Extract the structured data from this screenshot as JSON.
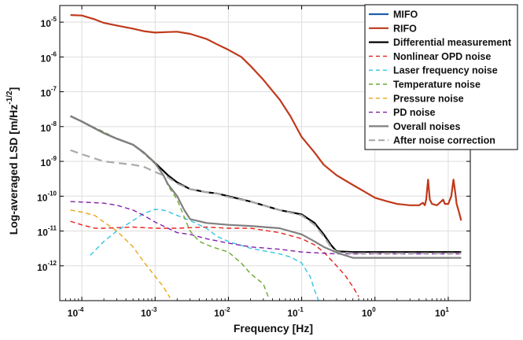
{
  "chart_data": {
    "type": "line",
    "title": "",
    "xlabel": "Frequency  [Hz]",
    "ylabel": "Log-averaged LSD [m/Hz^-1/2]",
    "ylabel_parts": {
      "main": "Log-averaged LSD [m/Hz",
      "exp": "-1/2",
      "close": "]"
    },
    "xscale": "log",
    "yscale": "log",
    "xlim": [
      5e-05,
      20
    ],
    "ylim": [
      1e-13,
      3e-05
    ],
    "grid": true,
    "legend_position": "top-right",
    "x_ticks": [
      {
        "value": 0.0001,
        "base": "10",
        "exp": "-4"
      },
      {
        "value": 0.001,
        "base": "10",
        "exp": "-3"
      },
      {
        "value": 0.01,
        "base": "10",
        "exp": "-2"
      },
      {
        "value": 0.1,
        "base": "10",
        "exp": "-1"
      },
      {
        "value": 1,
        "base": "10",
        "exp": "0"
      },
      {
        "value": 10,
        "base": "10",
        "exp": "1"
      }
    ],
    "y_ticks": [
      {
        "value": 1e-12,
        "base": "10",
        "exp": "-12"
      },
      {
        "value": 1e-11,
        "base": "10",
        "exp": "-11"
      },
      {
        "value": 1e-10,
        "base": "10",
        "exp": "-10"
      },
      {
        "value": 1e-09,
        "base": "10",
        "exp": "-9"
      },
      {
        "value": 1e-08,
        "base": "10",
        "exp": "-8"
      },
      {
        "value": 1e-07,
        "base": "10",
        "exp": "-7"
      },
      {
        "value": 1e-06,
        "base": "10",
        "exp": "-6"
      },
      {
        "value": 1e-05,
        "base": "10",
        "exp": "-5"
      }
    ],
    "series": [
      {
        "name": "MIFO",
        "color": "#1f5fa8",
        "dash": "solid",
        "width": 2.2,
        "points": []
      },
      {
        "name": "RIFO",
        "color": "#c0391b",
        "dash": "solid",
        "width": 2.2,
        "points": [
          [
            7e-05,
            1.6e-05
          ],
          [
            0.0001,
            1.55e-05
          ],
          [
            0.00015,
            1.2e-05
          ],
          [
            0.0002,
            9.5e-06
          ],
          [
            0.0003,
            8e-06
          ],
          [
            0.0005,
            6.5e-06
          ],
          [
            0.0007,
            5.5e-06
          ],
          [
            0.001,
            5e-06
          ],
          [
            0.0015,
            5.2e-06
          ],
          [
            0.002,
            5.3e-06
          ],
          [
            0.003,
            4.6e-06
          ],
          [
            0.005,
            3.3e-06
          ],
          [
            0.007,
            2.3e-06
          ],
          [
            0.01,
            1.6e-06
          ],
          [
            0.015,
            1e-06
          ],
          [
            0.02,
            5.5e-07
          ],
          [
            0.03,
            2.2e-07
          ],
          [
            0.05,
            6e-08
          ],
          [
            0.07,
            2e-08
          ],
          [
            0.1,
            5e-09
          ],
          [
            0.15,
            1.8e-09
          ],
          [
            0.2,
            8e-10
          ],
          [
            0.3,
            4e-10
          ],
          [
            0.5,
            2.1e-10
          ],
          [
            0.7,
            1.4e-10
          ],
          [
            1,
            9e-11
          ],
          [
            1.5,
            7e-11
          ],
          [
            2,
            6e-11
          ],
          [
            3,
            5.5e-11
          ],
          [
            4,
            5.5e-11
          ],
          [
            4.5,
            6.5e-11
          ],
          [
            4.8,
            5.5e-11
          ],
          [
            5,
            8e-11
          ],
          [
            5.3,
            3e-10
          ],
          [
            5.6,
            8e-11
          ],
          [
            6,
            6e-11
          ],
          [
            7,
            5.5e-11
          ],
          [
            8,
            7e-11
          ],
          [
            8.5,
            8e-11
          ],
          [
            9,
            6e-11
          ],
          [
            10,
            6e-11
          ],
          [
            11,
            1e-10
          ],
          [
            11.8,
            3e-10
          ],
          [
            12.5,
            1.2e-10
          ],
          [
            13,
            6e-11
          ],
          [
            14,
            3.5e-11
          ],
          [
            15,
            2e-11
          ]
        ]
      },
      {
        "name": "Differential measurement",
        "color": "#000000",
        "dash": "solid",
        "width": 2.2,
        "points": [
          [
            7e-05,
            2e-08
          ],
          [
            0.0001,
            1.4e-08
          ],
          [
            0.0002,
            6.5e-09
          ],
          [
            0.0003,
            4.5e-09
          ],
          [
            0.0005,
            3e-09
          ],
          [
            0.0007,
            1.8e-09
          ],
          [
            0.001,
            9e-10
          ],
          [
            0.0015,
            4e-10
          ],
          [
            0.002,
            2.5e-10
          ],
          [
            0.003,
            1.6e-10
          ],
          [
            0.005,
            1.3e-10
          ],
          [
            0.007,
            1.2e-10
          ],
          [
            0.01,
            1e-10
          ],
          [
            0.02,
            7e-11
          ],
          [
            0.03,
            5.5e-11
          ],
          [
            0.05,
            4e-11
          ],
          [
            0.1,
            3e-11
          ],
          [
            0.15,
            1.7e-11
          ],
          [
            0.2,
            8e-12
          ],
          [
            0.25,
            4e-12
          ],
          [
            0.3,
            2.6e-12
          ],
          [
            0.5,
            2.5e-12
          ],
          [
            1,
            2.5e-12
          ],
          [
            2,
            2.5e-12
          ],
          [
            5,
            2.5e-12
          ],
          [
            15,
            2.5e-12
          ]
        ]
      },
      {
        "name": "Nonlinear OPD noise",
        "color": "#e8231c",
        "dash": "dashed",
        "width": 1.4,
        "points": [
          [
            7e-05,
            1.9e-11
          ],
          [
            0.0001,
            1.5e-11
          ],
          [
            0.00015,
            1.2e-11
          ],
          [
            0.0002,
            1.2e-11
          ],
          [
            0.0005,
            1.3e-11
          ],
          [
            0.001,
            1.2e-11
          ],
          [
            0.002,
            1.2e-11
          ],
          [
            0.005,
            1.3e-11
          ],
          [
            0.01,
            1.2e-11
          ],
          [
            0.02,
            1.2e-11
          ],
          [
            0.05,
            9e-12
          ],
          [
            0.1,
            6e-12
          ],
          [
            0.15,
            4e-12
          ],
          [
            0.2,
            2.5e-12
          ],
          [
            0.25,
            1.5e-12
          ],
          [
            0.3,
            1e-12
          ],
          [
            0.4,
            5e-13
          ],
          [
            0.5,
            2.5e-13
          ],
          [
            0.6,
            1.3e-13
          ]
        ]
      },
      {
        "name": "Laser frequency noise",
        "color": "#33c4e8",
        "dash": "dashed",
        "width": 1.4,
        "points": [
          [
            0.00013,
            2e-12
          ],
          [
            0.0002,
            5e-12
          ],
          [
            0.0003,
            1e-11
          ],
          [
            0.0005,
            2e-11
          ],
          [
            0.0007,
            3.2e-11
          ],
          [
            0.001,
            4.2e-11
          ],
          [
            0.0013,
            4e-11
          ],
          [
            0.0015,
            3.6e-11
          ],
          [
            0.002,
            2.8e-11
          ],
          [
            0.003,
            2e-11
          ],
          [
            0.005,
            1.2e-11
          ],
          [
            0.007,
            7e-12
          ],
          [
            0.01,
            5e-12
          ],
          [
            0.02,
            3.2e-12
          ],
          [
            0.05,
            2.2e-12
          ],
          [
            0.07,
            1.8e-12
          ],
          [
            0.1,
            1.2e-12
          ],
          [
            0.13,
            5e-13
          ],
          [
            0.15,
            2e-13
          ],
          [
            0.17,
            1e-13
          ]
        ]
      },
      {
        "name": "Temperature noise",
        "color": "#6aa832",
        "dash": "dashed",
        "width": 1.4,
        "points": [
          [
            7e-05,
            2e-08
          ],
          [
            0.0001,
            1.4e-08
          ],
          [
            0.0002,
            7e-09
          ],
          [
            0.0003,
            4.5e-09
          ],
          [
            0.0005,
            3e-09
          ],
          [
            0.0007,
            1.7e-09
          ],
          [
            0.001,
            8.5e-10
          ],
          [
            0.0013,
            4e-10
          ],
          [
            0.0015,
            2e-10
          ],
          [
            0.002,
            8e-11
          ],
          [
            0.0025,
            2.5e-11
          ],
          [
            0.003,
            1e-11
          ],
          [
            0.004,
            5e-12
          ],
          [
            0.006,
            3.5e-12
          ],
          [
            0.01,
            2.5e-12
          ],
          [
            0.015,
            1.2e-12
          ],
          [
            0.02,
            6e-13
          ],
          [
            0.03,
            3e-13
          ],
          [
            0.035,
            1.3e-13
          ]
        ]
      },
      {
        "name": "Pressure noise",
        "color": "#e8a716",
        "dash": "dashed",
        "width": 1.4,
        "points": [
          [
            7e-05,
            4e-11
          ],
          [
            0.0001,
            3.5e-11
          ],
          [
            0.00015,
            2.8e-11
          ],
          [
            0.0002,
            1.8e-11
          ],
          [
            0.0003,
            1e-11
          ],
          [
            0.0005,
            3.5e-12
          ],
          [
            0.0007,
            1.3e-12
          ],
          [
            0.001,
            5e-13
          ],
          [
            0.0013,
            2.5e-13
          ],
          [
            0.0016,
            1.2e-13
          ]
        ]
      },
      {
        "name": "PD noise",
        "color": "#8020a8",
        "dash": "dashed",
        "width": 1.4,
        "points": [
          [
            7e-05,
            7e-11
          ],
          [
            0.0001,
            6.8e-11
          ],
          [
            0.0002,
            6.3e-11
          ],
          [
            0.0003,
            5.5e-11
          ],
          [
            0.0005,
            4e-11
          ],
          [
            0.0007,
            2.8e-11
          ],
          [
            0.001,
            1.8e-11
          ],
          [
            0.0015,
            1.2e-11
          ],
          [
            0.002,
            9e-12
          ],
          [
            0.003,
            8e-12
          ],
          [
            0.005,
            6e-12
          ],
          [
            0.01,
            4.5e-12
          ],
          [
            0.02,
            3.5e-12
          ],
          [
            0.05,
            3e-12
          ],
          [
            0.1,
            2.5e-12
          ],
          [
            0.2,
            2.3e-12
          ],
          [
            0.3,
            2.2e-12
          ],
          [
            0.5,
            2.2e-12
          ],
          [
            1,
            2.2e-12
          ],
          [
            5,
            2.2e-12
          ],
          [
            15,
            2.2e-12
          ]
        ]
      },
      {
        "name": "Overall noises",
        "color": "#808080",
        "dash": "solid",
        "width": 2.2,
        "points": [
          [
            7e-05,
            2e-08
          ],
          [
            0.0001,
            1.4e-08
          ],
          [
            0.0002,
            6.5e-09
          ],
          [
            0.0003,
            4.5e-09
          ],
          [
            0.0005,
            3e-09
          ],
          [
            0.0007,
            1.8e-09
          ],
          [
            0.001,
            9e-10
          ],
          [
            0.0013,
            4e-10
          ],
          [
            0.0015,
            2.2e-10
          ],
          [
            0.002,
            1e-10
          ],
          [
            0.0025,
            4e-11
          ],
          [
            0.003,
            2.2e-11
          ],
          [
            0.005,
            1.7e-11
          ],
          [
            0.01,
            1.5e-11
          ],
          [
            0.02,
            1.4e-11
          ],
          [
            0.05,
            1.2e-11
          ],
          [
            0.1,
            8e-12
          ],
          [
            0.15,
            5e-12
          ],
          [
            0.2,
            3.5e-12
          ],
          [
            0.3,
            2.4e-12
          ],
          [
            0.5,
            1.7e-12
          ],
          [
            1,
            1.7e-12
          ],
          [
            5,
            1.7e-12
          ],
          [
            15,
            1.7e-12
          ]
        ]
      },
      {
        "name": "After noise correction",
        "color": "#aaaaaa",
        "dash": "longdash",
        "width": 2.2,
        "points": [
          [
            7e-05,
            2.1e-09
          ],
          [
            0.0001,
            1.6e-09
          ],
          [
            0.0002,
            1e-09
          ],
          [
            0.0005,
            8e-10
          ],
          [
            0.0007,
            7e-10
          ],
          [
            0.001,
            5e-10
          ],
          [
            0.0015,
            3.5e-10
          ],
          [
            0.002,
            2.3e-10
          ],
          [
            0.003,
            1.6e-10
          ],
          [
            0.005,
            1.3e-10
          ],
          [
            0.007,
            1.2e-10
          ],
          [
            0.01,
            9.5e-11
          ],
          [
            0.02,
            7e-11
          ],
          [
            0.03,
            5.5e-11
          ],
          [
            0.05,
            4e-11
          ],
          [
            0.1,
            2.8e-11
          ],
          [
            0.15,
            1.5e-11
          ],
          [
            0.2,
            7e-12
          ],
          [
            0.25,
            3.5e-12
          ],
          [
            0.3,
            2.5e-12
          ],
          [
            0.5,
            2.3e-12
          ],
          [
            1,
            2.3e-12
          ],
          [
            5,
            2.3e-12
          ],
          [
            15,
            2.3e-12
          ]
        ]
      }
    ]
  }
}
